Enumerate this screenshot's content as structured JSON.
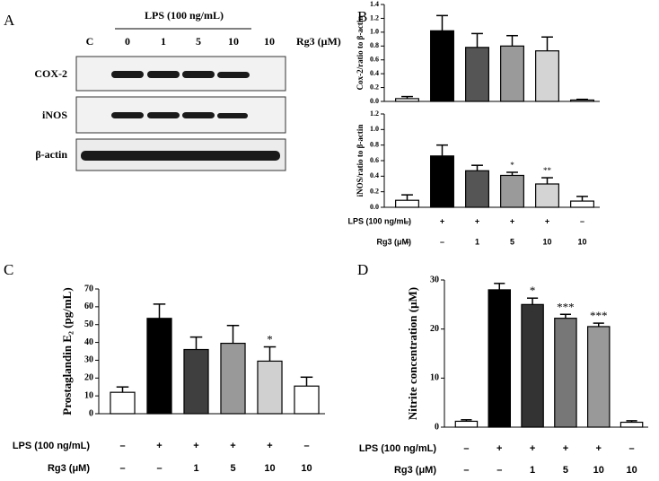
{
  "panel_labels": [
    "A",
    "B",
    "C",
    "D"
  ],
  "blot": {
    "lps_label": "LPS (100 ng/mL)",
    "dose_label": "Rg3 (μM)",
    "lanes": [
      "C",
      "0",
      "1",
      "5",
      "10",
      "10"
    ],
    "bands": [
      "COX-2",
      "iNOS",
      "β-actin"
    ]
  },
  "chart_data": [
    {
      "type": "bar",
      "ylabel": "Cox-2/ratio to β-actin",
      "ylim": [
        0,
        1.4
      ],
      "yticks": [
        {
          "value": 0,
          "label": "0.0"
        },
        0.2,
        0.4,
        0.6,
        0.8,
        {
          "value": 1,
          "label": "1.0"
        },
        1.2,
        1.4
      ],
      "values": [
        0.04,
        1.02,
        0.78,
        0.8,
        0.73,
        0.02
      ],
      "errors": [
        0.03,
        0.22,
        0.2,
        0.15,
        0.2,
        0.01
      ],
      "colors": [
        "#ffffff",
        "#000000",
        "#555555",
        "#9a9a9a",
        "#d4d4d4",
        "#ffffff"
      ]
    },
    {
      "type": "bar",
      "ylabel": "iNOS/ratio to β-actin",
      "ylim": [
        0,
        1.2
      ],
      "yticks": [
        {
          "value": 0,
          "label": "0.0"
        },
        0.2,
        0.4,
        0.6,
        0.8,
        {
          "value": 1,
          "label": "1.0"
        },
        1.2
      ],
      "values": [
        0.09,
        0.66,
        0.47,
        0.41,
        0.3,
        0.08
      ],
      "errors": [
        0.07,
        0.14,
        0.07,
        0.04,
        0.08,
        0.06
      ],
      "colors": [
        "#ffffff",
        "#000000",
        "#555555",
        "#9a9a9a",
        "#d4d4d4",
        "#ffffff"
      ],
      "annotations": [
        null,
        null,
        null,
        "*",
        "**",
        null
      ],
      "conditions": [
        {
          "name": "LPS (100 ng/mL)",
          "values": [
            "–",
            "+",
            "+",
            "+",
            "+",
            "–"
          ]
        },
        {
          "name": "Rg3 (μM)",
          "values": [
            "–",
            "–",
            "1",
            "5",
            "10",
            "10"
          ]
        }
      ]
    },
    {
      "type": "bar",
      "ylabel": "Prostaglandin E₂ (pg/mL)",
      "ylim": [
        0,
        70
      ],
      "yticks": [
        0,
        10,
        20,
        30,
        40,
        50,
        60,
        70
      ],
      "values": [
        12,
        53.5,
        36,
        39.5,
        29.5,
        15.5
      ],
      "errors": [
        3,
        8,
        7,
        10,
        8,
        5
      ],
      "colors": [
        "#ffffff",
        "#000000",
        "#3f3f3f",
        "#999999",
        "#d0d0d0",
        "#ffffff"
      ],
      "annotations": [
        null,
        null,
        null,
        null,
        "*",
        null
      ],
      "conditions": [
        {
          "name": "LPS (100 ng/mL)",
          "values": [
            "–",
            "+",
            "+",
            "+",
            "+",
            "–"
          ]
        },
        {
          "name": "Rg3 (μM)",
          "values": [
            "–",
            "–",
            "1",
            "5",
            "10",
            "10"
          ]
        }
      ]
    },
    {
      "type": "bar",
      "ylabel": "Nitrite concentration (μM)",
      "ylim": [
        0,
        30
      ],
      "yticks": [
        0,
        10,
        20,
        30
      ],
      "values": [
        1.2,
        28,
        25,
        22.2,
        20.5,
        1
      ],
      "errors": [
        0.3,
        1.3,
        1.3,
        0.8,
        0.7,
        0.3
      ],
      "colors": [
        "#ffffff",
        "#000000",
        "#333333",
        "#777777",
        "#999999",
        "#ffffff"
      ],
      "annotations": [
        null,
        null,
        "*",
        "***",
        "***",
        null
      ],
      "conditions": [
        {
          "name": "LPS (100 ng/mL)",
          "values": [
            "–",
            "+",
            "+",
            "+",
            "+",
            "–"
          ]
        },
        {
          "name": "Rg3 (μM)",
          "values": [
            "–",
            "–",
            "1",
            "5",
            "10",
            "10"
          ]
        }
      ]
    }
  ]
}
